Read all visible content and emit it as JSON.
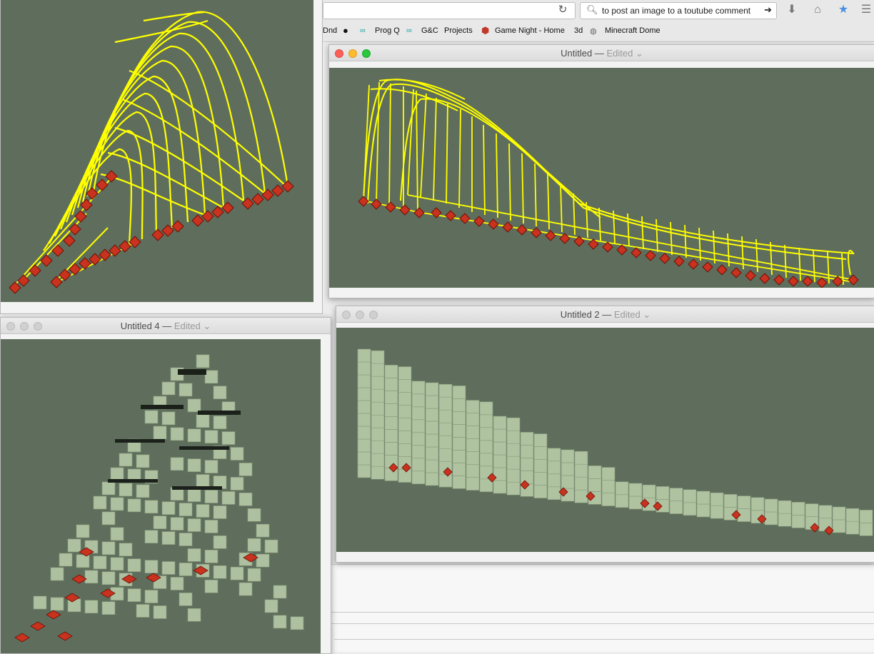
{
  "browser": {
    "search_text": "to post an image to a toutube comment",
    "bookmarks": [
      "Dnd",
      "Prog Q",
      "G&C",
      "Projects",
      "Game Night - Home",
      "3d",
      "Minecraft Dome"
    ]
  },
  "windows": [
    {
      "title": "Untitled",
      "status": "Edited",
      "active": true
    },
    {
      "title": "Untitled 4",
      "status": "Edited",
      "active": false
    },
    {
      "title": "Untitled 2",
      "status": "Edited",
      "active": false
    }
  ],
  "colors": {
    "canvas_bg": "#5f6e5c",
    "wireframe": "#ffff00",
    "marker": "#c8321e",
    "cube": "#b4c8a5"
  },
  "icons": [
    "reload-icon",
    "search-icon",
    "arrow-right-icon",
    "download-icon",
    "home-icon",
    "star-icon",
    "reader-icon",
    "github-icon",
    "arduino-icon",
    "ruby-icon",
    "globe-icon"
  ]
}
